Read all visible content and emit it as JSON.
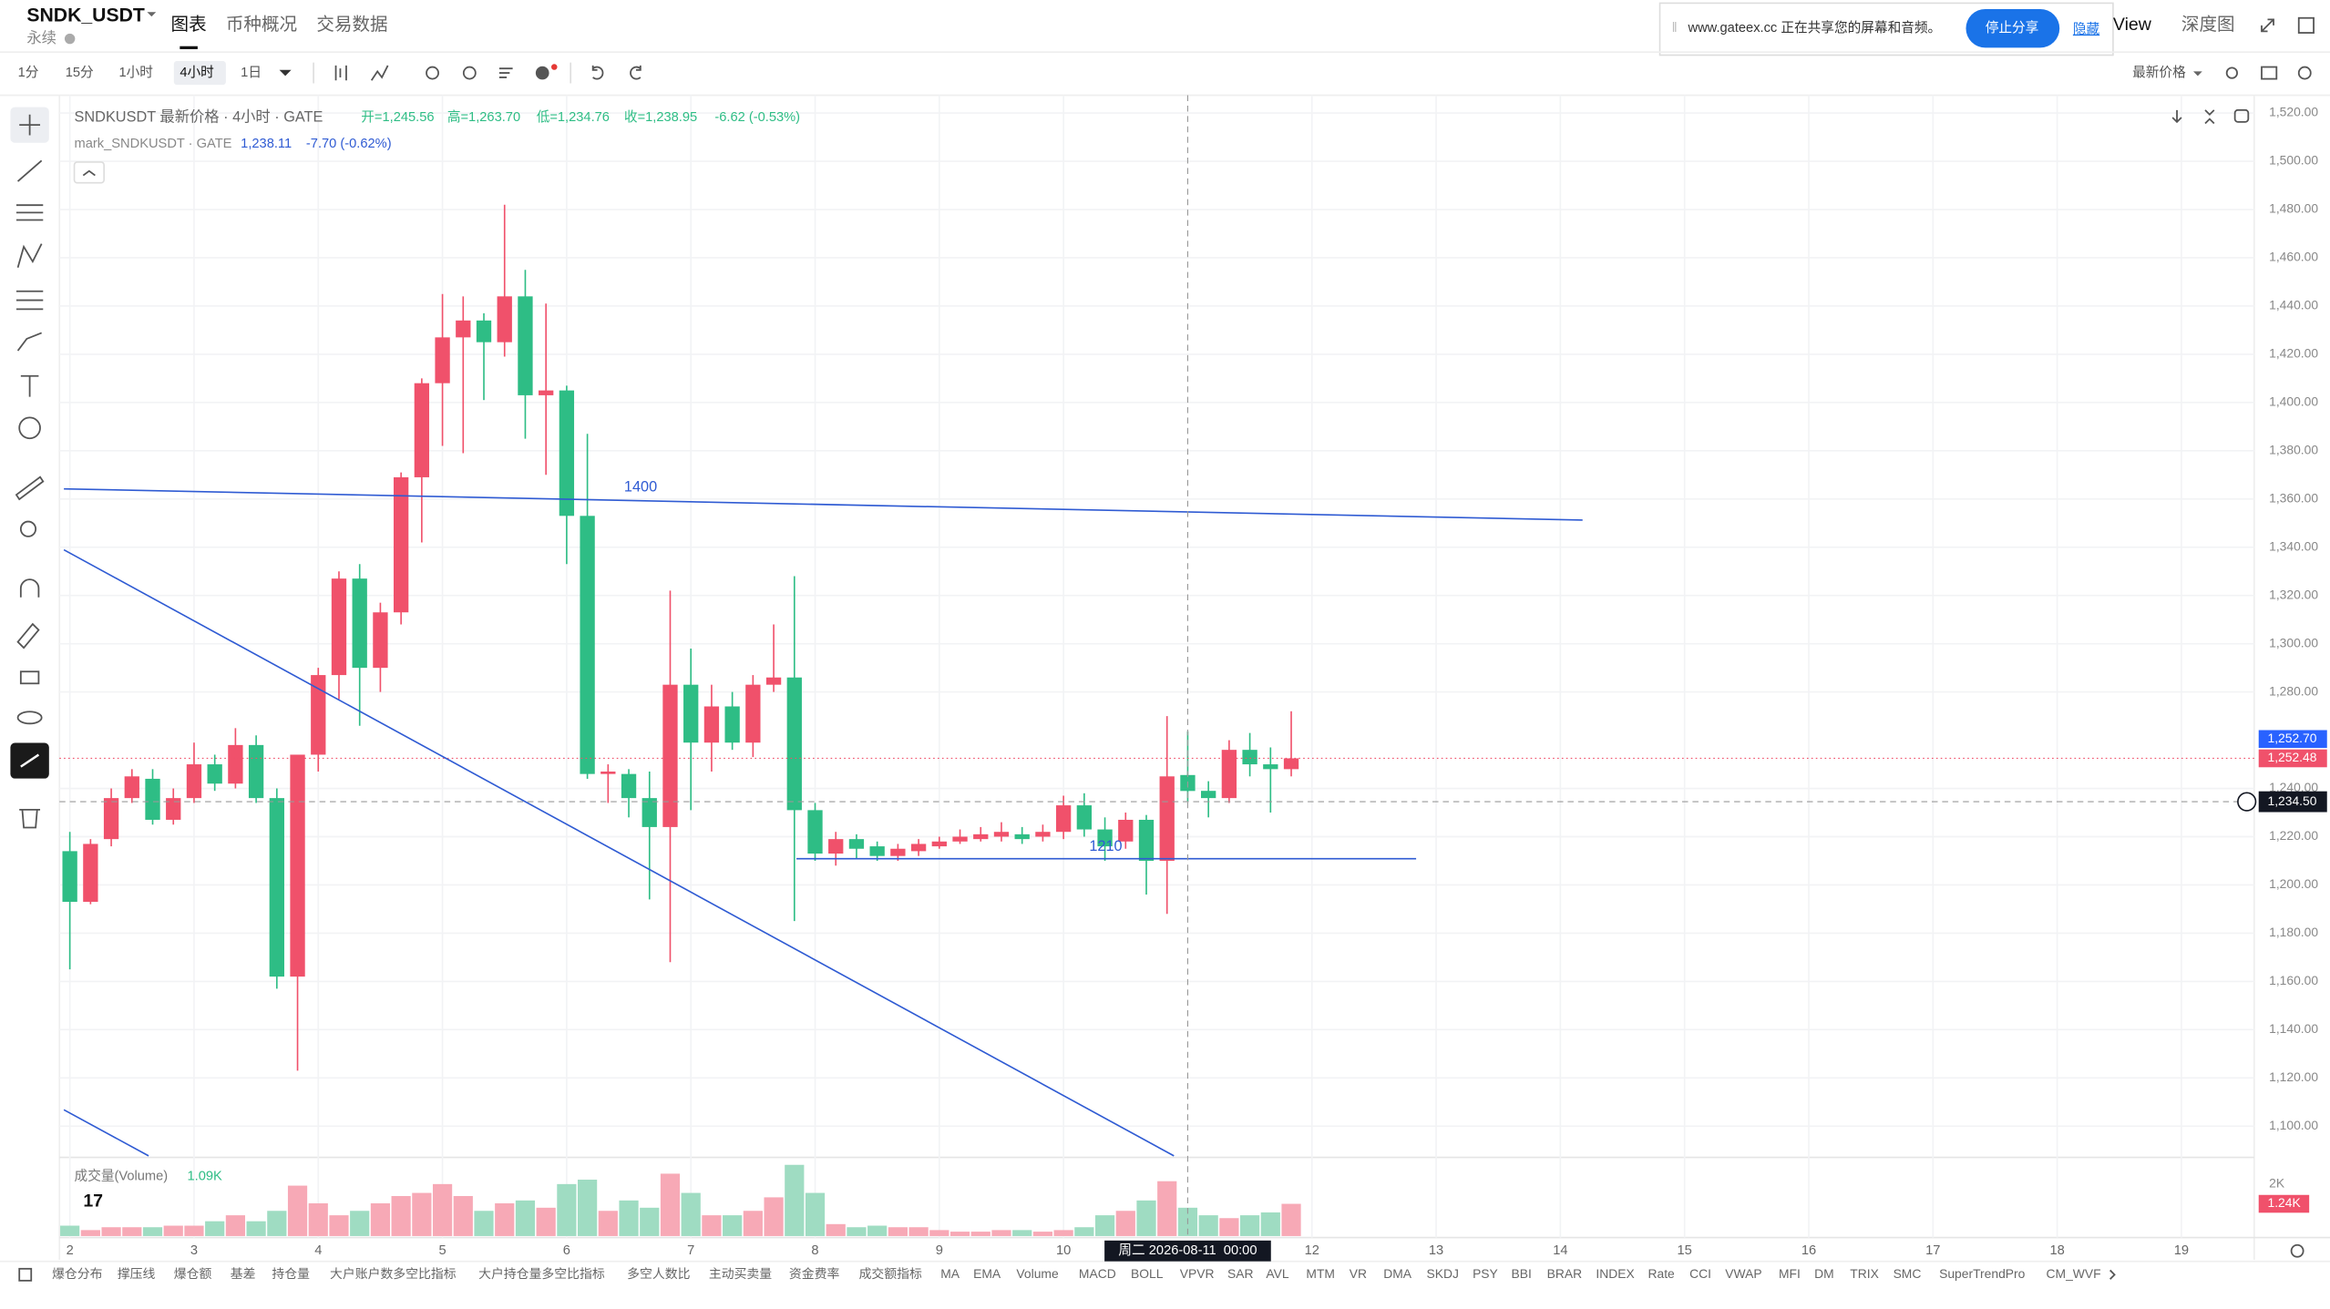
{
  "header": {
    "symbol": "SNDK_USDT",
    "subtitle": "永续",
    "tabs": [
      "图表",
      "币种概况",
      "交易数据"
    ],
    "share_notice": "www.gateex.cc 正在共享您的屏幕和音频。",
    "stop_share": "停止分享",
    "hide": "隐藏",
    "view": "View",
    "depth": "深度图"
  },
  "toolbar": {
    "intervals": [
      "1分",
      "15分",
      "1小时",
      "4小时",
      "1日"
    ],
    "active": 3,
    "price_type": "最新价格"
  },
  "legend": {
    "title": "SNDKUSDT 最新价格 · 4小时 · GATE",
    "open": "开=1,245.56",
    "high": "高=1,263.70",
    "low": "低=1,234.76",
    "close": "收=1,238.95",
    "change": "-6.62 (-0.53%)",
    "mark": "mark_SNDKUSDT · GATE",
    "mark_price": "1,238.11",
    "mark_change": "-7.70 (-0.62%)"
  },
  "chart": {
    "ohlc": [
      [
        1214,
        1222,
        1165,
        1193
      ],
      [
        1193,
        1219,
        1192,
        1217
      ],
      [
        1219,
        1240,
        1216,
        1236
      ],
      [
        1236,
        1248,
        1234,
        1245
      ],
      [
        1244,
        1248,
        1225,
        1227
      ],
      [
        1227,
        1240,
        1225,
        1236
      ],
      [
        1236,
        1259,
        1234,
        1250
      ],
      [
        1250,
        1254,
        1239,
        1242
      ],
      [
        1242,
        1265,
        1240,
        1258
      ],
      [
        1258,
        1262,
        1234,
        1236
      ],
      [
        1236,
        1240,
        1157,
        1162
      ],
      [
        1162,
        1254,
        1123,
        1254
      ],
      [
        1254,
        1290,
        1247,
        1287
      ],
      [
        1287,
        1330,
        1277,
        1327
      ],
      [
        1327,
        1333,
        1266,
        1290
      ],
      [
        1290,
        1317,
        1280,
        1313
      ],
      [
        1313,
        1371,
        1308,
        1369
      ],
      [
        1369,
        1410,
        1342,
        1408
      ],
      [
        1408,
        1445,
        1382,
        1427
      ],
      [
        1427,
        1444,
        1379,
        1434
      ],
      [
        1434,
        1437,
        1401,
        1425
      ],
      [
        1425,
        1482,
        1419,
        1444
      ],
      [
        1444,
        1455,
        1385,
        1403
      ],
      [
        1403,
        1441,
        1370,
        1405
      ],
      [
        1405,
        1407,
        1333,
        1353
      ],
      [
        1353,
        1387,
        1244,
        1246
      ],
      [
        1246,
        1250,
        1234,
        1247
      ],
      [
        1246,
        1248,
        1228,
        1236
      ],
      [
        1236,
        1247,
        1194,
        1224
      ],
      [
        1224,
        1322,
        1168,
        1283
      ],
      [
        1283,
        1298,
        1231,
        1259
      ],
      [
        1259,
        1283,
        1247,
        1274
      ],
      [
        1274,
        1280,
        1256,
        1259
      ],
      [
        1259,
        1287,
        1253,
        1283
      ],
      [
        1283,
        1308,
        1280,
        1286
      ],
      [
        1286,
        1328,
        1185,
        1231
      ],
      [
        1231,
        1234,
        1210,
        1213
      ],
      [
        1213,
        1222,
        1208,
        1219
      ],
      [
        1219,
        1221,
        1211,
        1215
      ],
      [
        1216,
        1218,
        1210,
        1212
      ],
      [
        1212,
        1217,
        1210,
        1215
      ],
      [
        1214,
        1219,
        1212,
        1217
      ],
      [
        1216,
        1220,
        1215,
        1218
      ],
      [
        1218,
        1223,
        1217,
        1220
      ],
      [
        1219,
        1224,
        1218,
        1221
      ],
      [
        1220,
        1226,
        1218,
        1222
      ],
      [
        1221,
        1224,
        1217,
        1219
      ],
      [
        1220,
        1225,
        1218,
        1222
      ],
      [
        1222,
        1237,
        1219,
        1233
      ],
      [
        1233,
        1238,
        1220,
        1223
      ],
      [
        1223,
        1228,
        1210,
        1216
      ],
      [
        1218,
        1230,
        1215,
        1227
      ],
      [
        1227,
        1229,
        1196,
        1210
      ],
      [
        1210,
        1270,
        1188,
        1245
      ],
      [
        1245.56,
        1263.7,
        1234.76,
        1238.95
      ],
      [
        1239,
        1243,
        1228,
        1236
      ],
      [
        1236,
        1260,
        1234,
        1256
      ],
      [
        1256,
        1263,
        1245,
        1250
      ],
      [
        1250,
        1257,
        1230,
        1248
      ],
      [
        1248,
        1272,
        1245,
        1252.48
      ]
    ],
    "volumes": [
      400,
      230,
      340,
      340,
      340,
      400,
      400,
      570,
      800,
      570,
      970,
      1940,
      1260,
      800,
      970,
      1260,
      1540,
      1660,
      2000,
      1540,
      970,
      1260,
      1370,
      1090,
      2000,
      2170,
      970,
      1370,
      1090,
      2400,
      1660,
      800,
      800,
      970,
      1490,
      2740,
      1660,
      460,
      340,
      400,
      340,
      340,
      230,
      170,
      170,
      230,
      230,
      170,
      230,
      340,
      800,
      970,
      1370,
      2110,
      1090,
      800,
      690,
      800,
      910,
      1240
    ],
    "ylim": [
      1100,
      1520
    ],
    "yticks": [
      {
        "value": 1520,
        "label": "1,520.00"
      },
      {
        "value": 1500,
        "label": "1,500.00"
      },
      {
        "value": 1480,
        "label": "1,480.00"
      },
      {
        "value": 1460,
        "label": "1,460.00"
      },
      {
        "value": 1440,
        "label": "1,440.00"
      },
      {
        "value": 1420,
        "label": "1,420.00"
      },
      {
        "value": 1400,
        "label": "1,400.00"
      },
      {
        "value": 1380,
        "label": "1,380.00"
      },
      {
        "value": 1360,
        "label": "1,360.00"
      },
      {
        "value": 1340,
        "label": "1,340.00"
      },
      {
        "value": 1320,
        "label": "1,320.00"
      },
      {
        "value": 1300,
        "label": "1,300.00"
      },
      {
        "value": 1280,
        "label": "1,280.00"
      },
      {
        "value": 1240,
        "label": "1,240.00"
      },
      {
        "value": 1220,
        "label": "1,220.00"
      },
      {
        "value": 1200,
        "label": "1,200.00"
      },
      {
        "value": 1180,
        "label": "1,180.00"
      },
      {
        "value": 1160,
        "label": "1,160.00"
      },
      {
        "value": 1140,
        "label": "1,140.00"
      },
      {
        "value": 1120,
        "label": "1,120.00"
      },
      {
        "value": 1100,
        "label": "1,100.00"
      }
    ],
    "xlim": [
      2,
      19
    ],
    "xticks": [
      2,
      3,
      4,
      5,
      6,
      7,
      8,
      9,
      10,
      12,
      13,
      14,
      15,
      16,
      17,
      18,
      19
    ],
    "volume_title": "成交量(Volume)",
    "volume_value": "1.09K",
    "volume_ticks": [
      {
        "value": 2000,
        "label": "2K"
      }
    ],
    "volume_tag": {
      "value": 1240,
      "label": "1.24K"
    },
    "price_tags": [
      {
        "value": 1252.7,
        "label": "1,252.70",
        "color": "#2962ff"
      },
      {
        "value": 1252.48,
        "label": "1,252.48",
        "color": "#f0516b"
      }
    ],
    "crosshair": {
      "price": {
        "value": 1234.5,
        "label": "1,234.50"
      },
      "time": "周二 2026-08-11  00:00",
      "day": 11
    },
    "drawings": [
      "1400",
      "1210"
    ],
    "colors": {
      "up": "#f0516b",
      "down": "#2ebd85",
      "up_volume": "#f7a9b6",
      "down_volume": "#9fdcc2"
    }
  },
  "indicators": [
    "爆仓分布",
    "撑压线",
    "爆仓额",
    "基差",
    "持仓量",
    "大户账户数多空比指标",
    "大户持仓量多空比指标",
    "多空人数比",
    "主动买卖量",
    "资金费率",
    "成交额指标",
    "MA",
    "EMA",
    "Volume",
    "MACD",
    "BOLL",
    "VPVR",
    "SAR",
    "AVL",
    "MTM",
    "VR",
    "DMA",
    "SKDJ",
    "PSY",
    "BBI",
    "BRAR",
    "INDEX",
    "Rate",
    "CCI",
    "VWAP",
    "MFI",
    "DM",
    "TRIX",
    "SMC",
    "SuperTrendPro",
    "CM_WVF"
  ]
}
